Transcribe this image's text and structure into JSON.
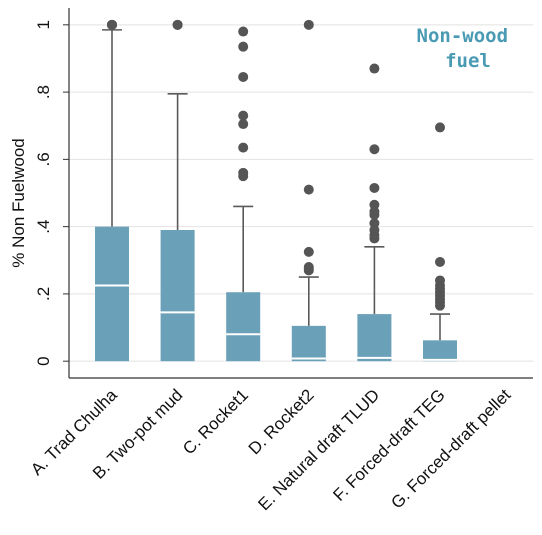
{
  "chart_data": {
    "type": "box",
    "ylabel": "% Non Fuelwood",
    "xlabel": "",
    "ylim": [
      -0.05,
      1.05
    ],
    "grid": true,
    "yticks": [
      {
        "value": 0,
        "label": "0"
      },
      {
        "value": 0.2,
        "label": ".2"
      },
      {
        "value": 0.4,
        "label": ".4"
      },
      {
        "value": 0.6,
        "label": ".6"
      },
      {
        "value": 0.8,
        "label": ".8"
      },
      {
        "value": 1,
        "label": "1"
      }
    ],
    "annotation": {
      "lines": [
        "Non-wood",
        "fuel"
      ],
      "position": "top-right"
    },
    "colors": {
      "box": "#6aa0b8",
      "median": "#ffffff",
      "whisker": "#5a5a5a",
      "outlier": "#555555",
      "grid": "#e2e2e2",
      "axis": "#333333"
    },
    "categories": [
      "A. Trad Chulha",
      "B. Two-pot mud",
      "C. Rocket1",
      "D. Rocket2",
      "E. Natural draft TLUD",
      "F. Forced-draft TEG",
      "G. Forced-draft pellet"
    ],
    "boxes": [
      {
        "q1": 0,
        "median": 0.225,
        "q3": 0.4,
        "whisker_low": 0,
        "whisker_high": 0.985,
        "outliers": [
          1,
          1,
          1
        ]
      },
      {
        "q1": 0,
        "median": 0.145,
        "q3": 0.39,
        "whisker_low": 0,
        "whisker_high": 0.795,
        "outliers": [
          1,
          1
        ]
      },
      {
        "q1": 0,
        "median": 0.08,
        "q3": 0.205,
        "whisker_low": 0,
        "whisker_high": 0.46,
        "outliers": [
          0.55,
          0.56,
          0.635,
          0.705,
          0.73,
          0.845,
          0.935,
          0.98
        ]
      },
      {
        "q1": 0,
        "median": 0.008,
        "q3": 0.105,
        "whisker_low": 0,
        "whisker_high": 0.25,
        "outliers": [
          0.27,
          0.275,
          0.28,
          0.325,
          0.51,
          1
        ]
      },
      {
        "q1": 0,
        "median": 0.01,
        "q3": 0.14,
        "whisker_low": 0,
        "whisker_high": 0.34,
        "outliers": [
          0.365,
          0.375,
          0.39,
          0.41,
          0.435,
          0.445,
          0.465,
          0.515,
          0.63,
          0.87
        ]
      },
      {
        "q1": 0,
        "median": 0.004,
        "q3": 0.062,
        "whisker_low": 0,
        "whisker_high": 0.14,
        "outliers": [
          0.165,
          0.175,
          0.185,
          0.195,
          0.205,
          0.215,
          0.225,
          0.24,
          0.295,
          0.695
        ]
      },
      null
    ]
  }
}
